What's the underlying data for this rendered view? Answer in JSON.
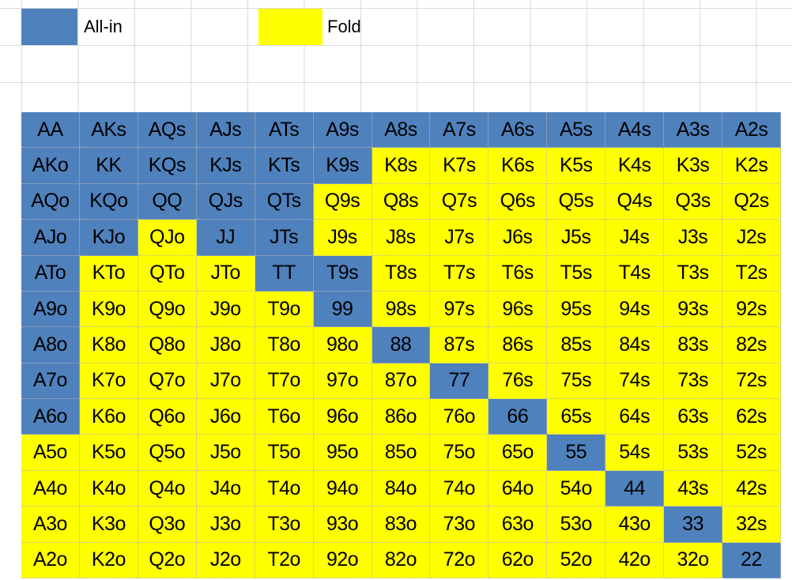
{
  "legend": {
    "allin_label": "All-in",
    "fold_label": "Fold",
    "allin_color": "#4f81bd",
    "fold_color": "#ffff00"
  },
  "ranks": [
    "A",
    "K",
    "Q",
    "J",
    "T",
    "9",
    "8",
    "7",
    "6",
    "5",
    "4",
    "3",
    "2"
  ],
  "hands": [
    [
      "AA",
      "AKs",
      "AQs",
      "AJs",
      "ATs",
      "A9s",
      "A8s",
      "A7s",
      "A6s",
      "A5s",
      "A4s",
      "A3s",
      "A2s"
    ],
    [
      "AKo",
      "KK",
      "KQs",
      "KJs",
      "KTs",
      "K9s",
      "K8s",
      "K7s",
      "K6s",
      "K5s",
      "K4s",
      "K3s",
      "K2s"
    ],
    [
      "AQo",
      "KQo",
      "QQ",
      "QJs",
      "QTs",
      "Q9s",
      "Q8s",
      "Q7s",
      "Q6s",
      "Q5s",
      "Q4s",
      "Q3s",
      "Q2s"
    ],
    [
      "AJo",
      "KJo",
      "QJo",
      "JJ",
      "JTs",
      "J9s",
      "J8s",
      "J7s",
      "J6s",
      "J5s",
      "J4s",
      "J3s",
      "J2s"
    ],
    [
      "ATo",
      "KTo",
      "QTo",
      "JTo",
      "TT",
      "T9s",
      "T8s",
      "T7s",
      "T6s",
      "T5s",
      "T4s",
      "T3s",
      "T2s"
    ],
    [
      "A9o",
      "K9o",
      "Q9o",
      "J9o",
      "T9o",
      "99",
      "98s",
      "97s",
      "96s",
      "95s",
      "94s",
      "93s",
      "92s"
    ],
    [
      "A8o",
      "K8o",
      "Q8o",
      "J8o",
      "T8o",
      "98o",
      "88",
      "87s",
      "86s",
      "85s",
      "84s",
      "83s",
      "82s"
    ],
    [
      "A7o",
      "K7o",
      "Q7o",
      "J7o",
      "T7o",
      "97o",
      "87o",
      "77",
      "76s",
      "75s",
      "74s",
      "73s",
      "72s"
    ],
    [
      "A6o",
      "K6o",
      "Q6o",
      "J6o",
      "T6o",
      "96o",
      "86o",
      "76o",
      "66",
      "65s",
      "64s",
      "63s",
      "62s"
    ],
    [
      "A5o",
      "K5o",
      "Q5o",
      "J5o",
      "T5o",
      "95o",
      "85o",
      "75o",
      "65o",
      "55",
      "54s",
      "53s",
      "52s"
    ],
    [
      "A4o",
      "K4o",
      "Q4o",
      "J4o",
      "T4o",
      "94o",
      "84o",
      "74o",
      "64o",
      "54o",
      "44",
      "43s",
      "42s"
    ],
    [
      "A3o",
      "K3o",
      "Q3o",
      "J3o",
      "T3o",
      "93o",
      "83o",
      "73o",
      "63o",
      "53o",
      "43o",
      "33",
      "32s"
    ],
    [
      "A2o",
      "K2o",
      "Q2o",
      "J2o",
      "T2o",
      "92o",
      "82o",
      "72o",
      "62o",
      "52o",
      "42o",
      "32o",
      "22"
    ]
  ],
  "actions": [
    [
      "A",
      "A",
      "A",
      "A",
      "A",
      "A",
      "A",
      "A",
      "A",
      "A",
      "A",
      "A",
      "A"
    ],
    [
      "A",
      "A",
      "A",
      "A",
      "A",
      "A",
      "F",
      "F",
      "F",
      "F",
      "F",
      "F",
      "F"
    ],
    [
      "A",
      "A",
      "A",
      "A",
      "A",
      "F",
      "F",
      "F",
      "F",
      "F",
      "F",
      "F",
      "F"
    ],
    [
      "A",
      "A",
      "F",
      "A",
      "A",
      "F",
      "F",
      "F",
      "F",
      "F",
      "F",
      "F",
      "F"
    ],
    [
      "A",
      "F",
      "F",
      "F",
      "A",
      "A",
      "F",
      "F",
      "F",
      "F",
      "F",
      "F",
      "F"
    ],
    [
      "A",
      "F",
      "F",
      "F",
      "F",
      "A",
      "F",
      "F",
      "F",
      "F",
      "F",
      "F",
      "F"
    ],
    [
      "A",
      "F",
      "F",
      "F",
      "F",
      "F",
      "A",
      "F",
      "F",
      "F",
      "F",
      "F",
      "F"
    ],
    [
      "A",
      "F",
      "F",
      "F",
      "F",
      "F",
      "F",
      "A",
      "F",
      "F",
      "F",
      "F",
      "F"
    ],
    [
      "A",
      "F",
      "F",
      "F",
      "F",
      "F",
      "F",
      "F",
      "A",
      "F",
      "F",
      "F",
      "F"
    ],
    [
      "F",
      "F",
      "F",
      "F",
      "F",
      "F",
      "F",
      "F",
      "F",
      "A",
      "F",
      "F",
      "F"
    ],
    [
      "F",
      "F",
      "F",
      "F",
      "F",
      "F",
      "F",
      "F",
      "F",
      "F",
      "A",
      "F",
      "F"
    ],
    [
      "F",
      "F",
      "F",
      "F",
      "F",
      "F",
      "F",
      "F",
      "F",
      "F",
      "F",
      "A",
      "F"
    ],
    [
      "F",
      "F",
      "F",
      "F",
      "F",
      "F",
      "F",
      "F",
      "F",
      "F",
      "F",
      "F",
      "A"
    ]
  ]
}
